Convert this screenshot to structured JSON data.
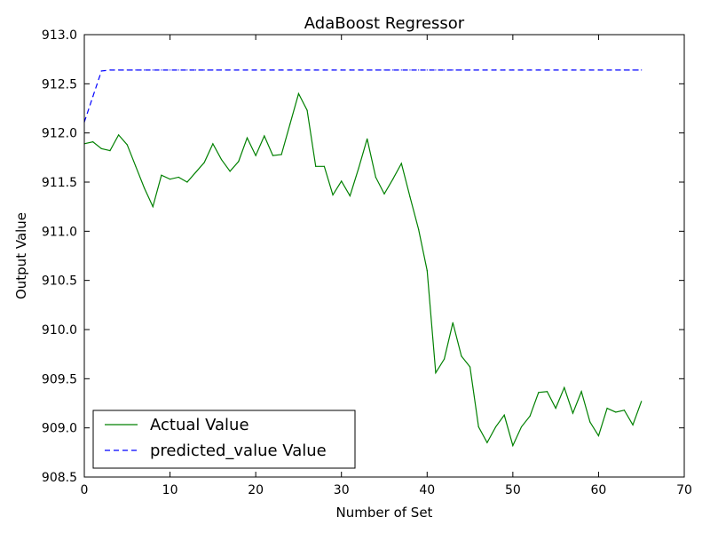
{
  "chart_data": {
    "type": "line",
    "title": "AdaBoost Regressor",
    "xlabel": "Number of Set",
    "ylabel": "Output Value",
    "xlim": [
      0,
      70
    ],
    "ylim": [
      908.5,
      913.0
    ],
    "x_ticks": [
      "0",
      "10",
      "20",
      "30",
      "40",
      "50",
      "60",
      "70"
    ],
    "y_ticks": [
      "908.5",
      "909.0",
      "909.5",
      "910.0",
      "910.5",
      "911.0",
      "911.5",
      "912.0",
      "912.5",
      "913.0"
    ],
    "grid": false,
    "legend_position": "lower-left",
    "series": [
      {
        "name": "Actual Value",
        "color": "#008000",
        "style": "solid",
        "x": [
          0,
          1,
          2,
          3,
          4,
          5,
          6,
          7,
          8,
          9,
          10,
          11,
          12,
          13,
          14,
          15,
          16,
          17,
          18,
          19,
          20,
          21,
          22,
          23,
          24,
          25,
          26,
          27,
          28,
          29,
          30,
          31,
          32,
          33,
          34,
          35,
          36,
          37,
          38,
          39,
          40,
          41,
          42,
          43,
          44,
          45,
          46,
          47,
          48,
          49,
          50,
          51,
          52,
          53,
          54,
          55,
          56,
          57,
          58,
          59,
          60,
          61,
          62,
          63,
          64,
          65
        ],
        "values": [
          911.89,
          911.91,
          911.84,
          911.82,
          911.98,
          911.88,
          911.66,
          911.44,
          911.25,
          911.57,
          911.53,
          911.55,
          911.5,
          911.6,
          911.7,
          911.89,
          911.73,
          911.61,
          911.71,
          911.95,
          911.77,
          911.97,
          911.77,
          911.78,
          912.09,
          912.4,
          912.23,
          911.66,
          911.66,
          911.37,
          911.51,
          911.36,
          911.64,
          911.94,
          911.55,
          911.38,
          911.53,
          911.69,
          911.35,
          911.02,
          910.6,
          909.56,
          909.7,
          910.07,
          909.73,
          909.62,
          909.01,
          908.85,
          909.01,
          909.13,
          908.82,
          909.01,
          909.12,
          909.36,
          909.37,
          909.2,
          909.41,
          909.15,
          909.37,
          909.06,
          908.92,
          909.2,
          909.16,
          909.18,
          909.03,
          909.27
        ]
      },
      {
        "name": "predicted_value Value",
        "color": "#0000ff",
        "style": "dashed",
        "x": [
          0,
          1,
          2,
          3,
          4,
          5,
          6,
          7,
          8,
          9,
          10,
          11,
          12,
          13,
          14,
          15,
          16,
          17,
          18,
          19,
          20,
          21,
          22,
          23,
          24,
          25,
          26,
          27,
          28,
          29,
          30,
          31,
          32,
          33,
          34,
          35,
          36,
          37,
          38,
          39,
          40,
          41,
          42,
          43,
          44,
          45,
          46,
          47,
          48,
          49,
          50,
          51,
          52,
          53,
          54,
          55,
          56,
          57,
          58,
          59,
          60,
          61,
          62,
          63,
          64,
          65
        ],
        "values": [
          912.11,
          912.37,
          912.63,
          912.64,
          912.64,
          912.64,
          912.64,
          912.64,
          912.64,
          912.64,
          912.64,
          912.64,
          912.64,
          912.64,
          912.64,
          912.64,
          912.64,
          912.64,
          912.64,
          912.64,
          912.64,
          912.64,
          912.64,
          912.64,
          912.64,
          912.64,
          912.64,
          912.64,
          912.64,
          912.64,
          912.64,
          912.64,
          912.64,
          912.64,
          912.64,
          912.64,
          912.64,
          912.64,
          912.64,
          912.64,
          912.64,
          912.64,
          912.64,
          912.64,
          912.64,
          912.64,
          912.64,
          912.64,
          912.64,
          912.64,
          912.64,
          912.64,
          912.64,
          912.64,
          912.64,
          912.64,
          912.64,
          912.64,
          912.64,
          912.64,
          912.64,
          912.64,
          912.64,
          912.64,
          912.64,
          912.64
        ]
      }
    ]
  }
}
